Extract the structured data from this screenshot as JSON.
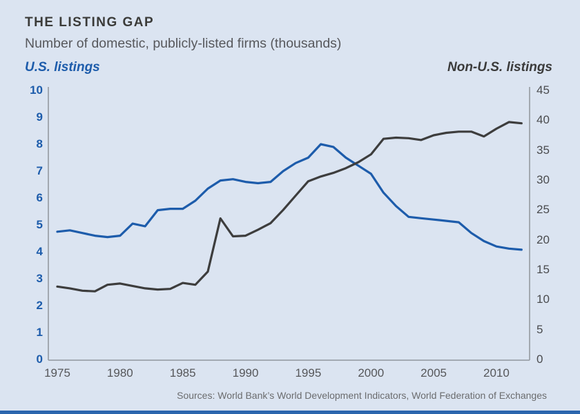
{
  "header": {
    "title": "THE LISTING GAP",
    "subtitle": "Number of domestic, publicly-listed firms (thousands)"
  },
  "footer": {
    "source": "Sources: World Bank’s World Development Indicators, World Federation of Exchanges"
  },
  "colors": {
    "background": "#dbe4f1",
    "us_line": "#1d5cab",
    "non_us_line": "#3d3d3d",
    "axis_line": "#9ba1a9",
    "accent_bar": "#2a65ad"
  },
  "chart_data": {
    "type": "line",
    "title": "THE LISTING GAP",
    "subtitle": "Number of domestic, publicly-listed firms (thousands)",
    "grid": false,
    "legend_position": "axis titles above plot, left and right",
    "x": [
      1975,
      1976,
      1977,
      1978,
      1979,
      1980,
      1981,
      1982,
      1983,
      1984,
      1985,
      1986,
      1987,
      1988,
      1989,
      1990,
      1991,
      1992,
      1993,
      1994,
      1995,
      1996,
      1997,
      1998,
      1999,
      2000,
      2001,
      2002,
      2003,
      2004,
      2005,
      2006,
      2007,
      2008,
      2009,
      2010,
      2011,
      2012
    ],
    "x_axis": {
      "ticks": [
        1975,
        1980,
        1985,
        1990,
        1995,
        2000,
        2005,
        2010
      ],
      "range": [
        1974.3,
        2012.65
      ]
    },
    "left_axis": {
      "label": "U.S. listings",
      "ticks": [
        0,
        1,
        2,
        3,
        4,
        5,
        6,
        7,
        8,
        9,
        10
      ],
      "range": [
        0,
        10
      ]
    },
    "right_axis": {
      "label": "Non-U.S. listings",
      "ticks": [
        0,
        5,
        10,
        15,
        20,
        25,
        30,
        35,
        40,
        45
      ],
      "range": [
        0,
        45
      ]
    },
    "series": [
      {
        "name": "U.S. listings",
        "axis": "left",
        "color": "#1d5cab",
        "values": [
          4.75,
          4.8,
          4.7,
          4.6,
          4.55,
          4.6,
          5.05,
          4.95,
          5.55,
          5.6,
          5.6,
          5.9,
          6.35,
          6.65,
          6.7,
          6.6,
          6.55,
          6.6,
          7.0,
          7.3,
          7.5,
          8.0,
          7.9,
          7.5,
          7.2,
          6.9,
          6.2,
          5.7,
          5.3,
          5.25,
          5.2,
          5.15,
          5.1,
          4.7,
          4.4,
          4.2,
          4.12,
          4.08
        ]
      },
      {
        "name": "Non-U.S. listings",
        "axis": "right",
        "color": "#3d3d3d",
        "values": [
          12.2,
          11.9,
          11.5,
          11.4,
          12.5,
          12.7,
          12.3,
          11.9,
          11.7,
          11.8,
          12.8,
          12.5,
          14.7,
          23.6,
          20.6,
          20.7,
          21.7,
          22.8,
          25.0,
          27.4,
          29.8,
          30.6,
          31.2,
          32.0,
          33.0,
          34.3,
          36.9,
          37.1,
          37.0,
          36.7,
          37.5,
          37.9,
          38.1,
          38.1,
          37.3,
          38.6,
          39.7,
          39.5
        ]
      }
    ]
  }
}
